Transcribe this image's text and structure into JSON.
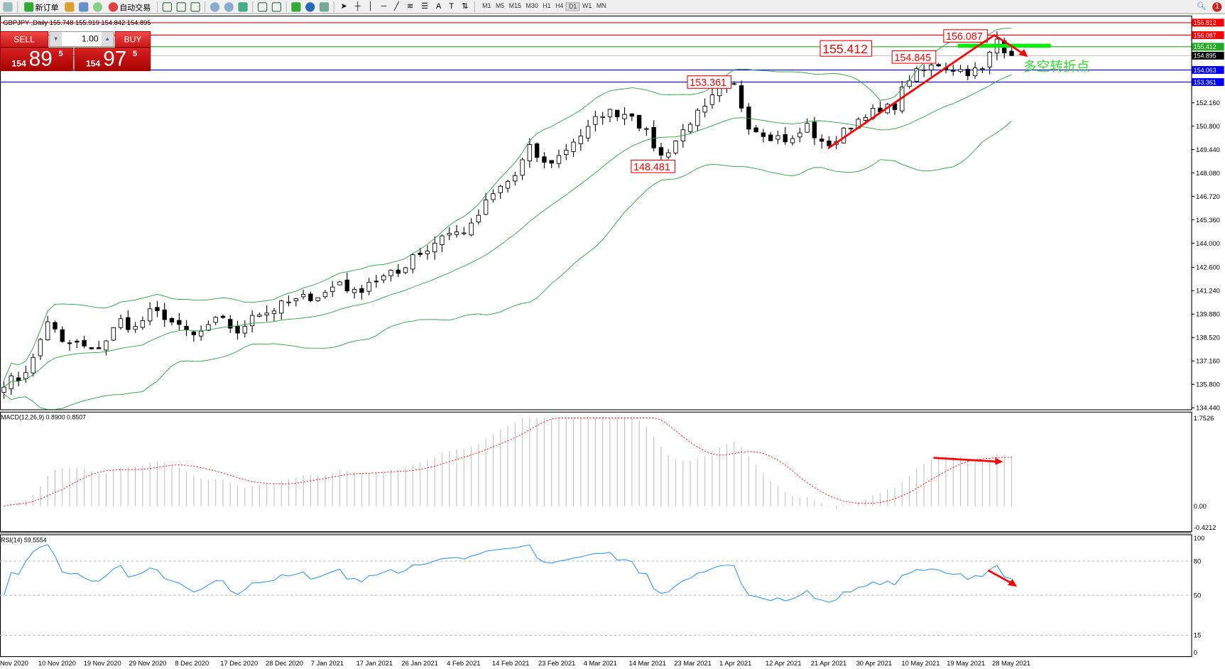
{
  "toolbar": {
    "new_order": "新订单",
    "auto_trading": "自动交易",
    "timeframes": [
      "M1",
      "M5",
      "M15",
      "M30",
      "H1",
      "H4",
      "D1",
      "W1",
      "MN"
    ],
    "active_timeframe": "D1",
    "notification_count": "1"
  },
  "chart": {
    "symbol_line": "GBPJPY ,Daily  155.748 155.919 154.842 154.895",
    "macd_label": "MACD(12,26,9) 0.8900 0.8507",
    "rsi_label": "RSI(14) 59.5554"
  },
  "trade_panel": {
    "sell_label": "SELL",
    "buy_label": "BUY",
    "lot": "1.00",
    "sell_price": {
      "small": "154",
      "big": "89",
      "tail": "5"
    },
    "buy_price": {
      "small": "154",
      "big": "97",
      "tail": "5"
    }
  },
  "annotations": {
    "labels": [
      "155.412",
      "156.087",
      "154.845",
      "153.361",
      "148.481"
    ],
    "note": "多空转折点"
  },
  "colors": {
    "bull_bear": "#000000",
    "bands": "#22a03a",
    "macd_signal": "#ff0000",
    "rsi": "#1e90ff",
    "arrow": "#ff0000",
    "zone": "#00ee00",
    "note": "#33dd33"
  },
  "chart_data": {
    "type": "candlestick",
    "price_ticks": [
      "152.160",
      "150.800",
      "149.440",
      "148.080",
      "146.720",
      "145.360",
      "144.000",
      "142.600",
      "141.240",
      "139.880",
      "138.520",
      "137.160",
      "135.800",
      "134.440"
    ],
    "price_range": [
      134.44,
      156.812
    ],
    "levels": [
      {
        "value": "156.812",
        "color": "#ff0000"
      },
      {
        "value": "156.087",
        "color": "#ff0000"
      },
      {
        "value": "155.412",
        "color": "#22aa22"
      },
      {
        "value": "154.895",
        "color": "#000000"
      },
      {
        "value": "154.063",
        "color": "#0000ff"
      },
      {
        "value": "153.361",
        "color": "#0000ff"
      }
    ],
    "dates": [
      "Nov 2020",
      "10 Nov 2020",
      "19 Nov 2020",
      "29 Nov 2020",
      "8 Dec 2020",
      "17 Dec 2020",
      "28 Dec 2020",
      "7 Jan 2021",
      "17 Jan 2021",
      "26 Jan 2021",
      "4 Feb 2021",
      "14 Feb 2021",
      "23 Feb 2021",
      "4 Mar 2021",
      "14 Mar 2021",
      "23 Mar 2021",
      "1 Apr 2021",
      "12 Apr 2021",
      "21 Apr 2021",
      "30 Apr 2021",
      "10 May 2021",
      "19 May 2021",
      "28 May 2021"
    ],
    "closes_approx": [
      135.89,
      136.12,
      137.25,
      139.52,
      138.16,
      138.16,
      137.71,
      138.39,
      139.52,
      139.07,
      139.98,
      139.75,
      139.07,
      138.61,
      139.07,
      139.75,
      138.61,
      139.98,
      139.98,
      140.43,
      140.66,
      140.88,
      141.11,
      141.79,
      141.11,
      141.79,
      142.02,
      142.24,
      143.38,
      143.61,
      144.51,
      144.6,
      144.97,
      146.33,
      147.24,
      147.92,
      149.51,
      148.6,
      149.05,
      149.96,
      150.64,
      151.55,
      151.55,
      151.55,
      150.41,
      149.05,
      149.96,
      151.09,
      151.77,
      152.91,
      153.14,
      150.87,
      150.41,
      150.19,
      149.96,
      150.87,
      149.73,
      149.96,
      150.87,
      151.55,
      151.55,
      152.0,
      153.59,
      154.04,
      154.41,
      154.14,
      153.95,
      154.04,
      155.86,
      154.9
    ],
    "macd": {
      "ticks": [
        "1.7526",
        "0.00",
        "-0.4212"
      ],
      "range": [
        -0.4212,
        1.7526
      ]
    },
    "rsi": {
      "ticks": [
        "100",
        "80",
        "50",
        "15",
        "0"
      ],
      "levels": [
        80,
        50,
        15
      ]
    }
  }
}
